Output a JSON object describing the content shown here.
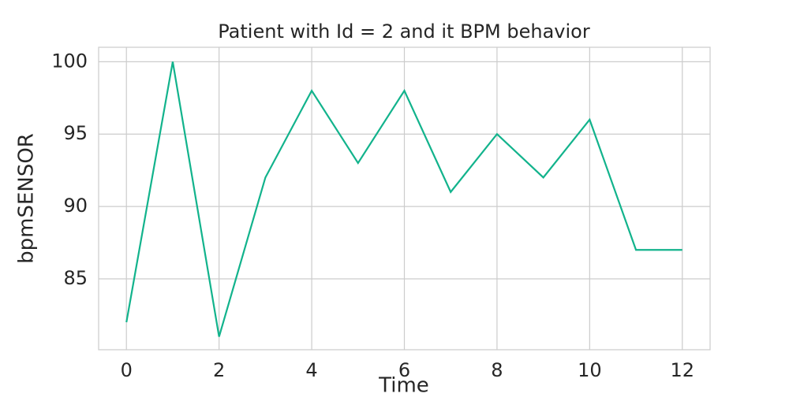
{
  "chart_data": {
    "type": "line",
    "title": "Patient with Id = 2 and it BPM behavior",
    "x_label": "Time",
    "y_label": "bpmSENSOR",
    "x": [
      0,
      1,
      2,
      3,
      4,
      5,
      6,
      7,
      8,
      9,
      10,
      11,
      12
    ],
    "series": [
      {
        "name": "bpmSENSOR",
        "color": "#12b38c",
        "values": [
          82,
          100,
          81,
          92,
          98,
          93,
          98,
          91,
          95,
          92,
          96,
          87,
          87
        ]
      }
    ],
    "xlim": [
      -0.6,
      12.6
    ],
    "xticks": [
      0,
      2,
      4,
      6,
      8,
      10,
      12
    ],
    "ylim": [
      80.1,
      101
    ],
    "yticks": [
      85,
      90,
      95,
      100
    ],
    "grid": true
  }
}
